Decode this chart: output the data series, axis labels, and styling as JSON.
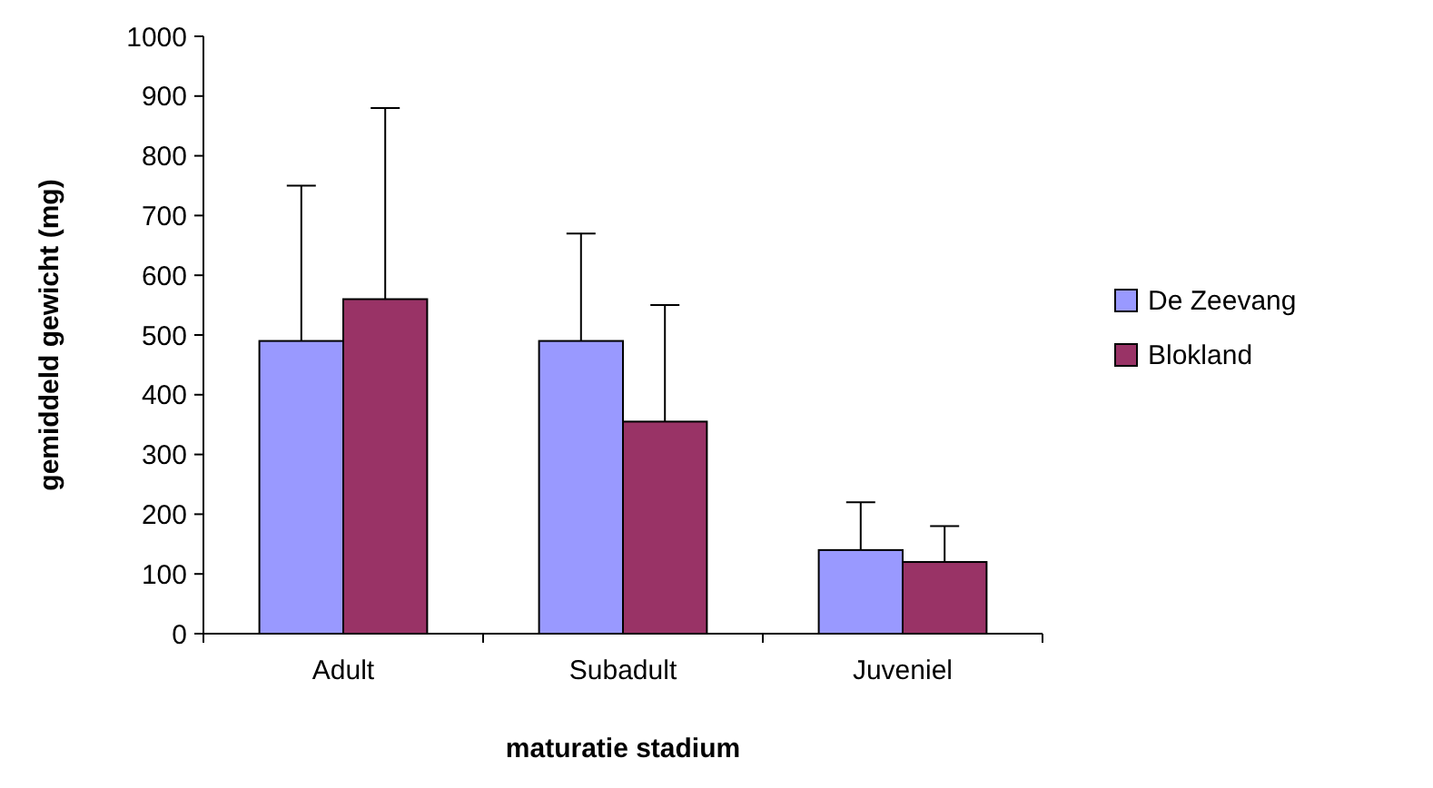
{
  "chart_data": {
    "type": "bar",
    "xlabel": "maturatie stadium",
    "ylabel": "gemiddeld gewicht (mg)",
    "categories": [
      "Adult",
      "Subadult",
      "Juveniel"
    ],
    "series": [
      {
        "name": "De Zeevang",
        "color": "#9999ff",
        "values": [
          490,
          490,
          140
        ],
        "errors": [
          [
            490,
            750
          ],
          [
            490,
            670
          ],
          [
            140,
            220
          ]
        ]
      },
      {
        "name": "Blokland",
        "color": "#993366",
        "values": [
          560,
          355,
          120
        ],
        "errors": [
          [
            560,
            880
          ],
          [
            355,
            550
          ],
          [
            120,
            180
          ]
        ]
      }
    ],
    "ylim": [
      0,
      1000
    ],
    "yticks": [
      0,
      100,
      200,
      300,
      400,
      500,
      600,
      700,
      800,
      900,
      1000
    ],
    "grid": false,
    "legend": "right"
  }
}
